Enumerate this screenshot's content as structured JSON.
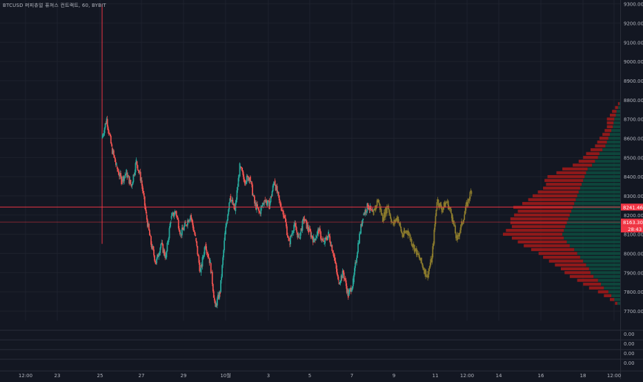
{
  "header": {
    "symbol_title": "BTCUSD 퍼피츄얼 퓨쳐스 컨트랙트, 60, BYBIT"
  },
  "colors": {
    "background": "#131722",
    "grid": "#1e222d",
    "axis_text": "#b2b5be",
    "candle_up": "#26a69a",
    "candle_down": "#ef5350",
    "candle_projection": "#8a7a2c",
    "price_line": "#f23645",
    "volume_profile_up": "#0d4d40",
    "volume_profile_down": "#9e1a1a",
    "spike_line": "#f23645"
  },
  "price_axis": {
    "ticks": [
      "9300.00",
      "9200.00",
      "9100.00",
      "9000.00",
      "8900.00",
      "8800.00",
      "8700.00",
      "8600.00",
      "8500.00",
      "8400.00",
      "8300.00",
      "8200.00",
      "8100.00",
      "8000.00",
      "7900.00",
      "7800.00",
      "7700.00"
    ],
    "ylim": [
      7650,
      9320
    ]
  },
  "price_labels": {
    "current_price": "8241.46",
    "second_price": "8163.30",
    "countdown": "28:43"
  },
  "sub_panes": {
    "labels": [
      "0.00",
      "0.00",
      "0.00",
      "0.00"
    ]
  },
  "time_axis": {
    "ticks": [
      "12:00",
      "23",
      "25",
      "27",
      "29",
      "10월",
      "3",
      "5",
      "7",
      "9",
      "11",
      "12:00",
      "14",
      "16",
      "18",
      "12:00"
    ]
  },
  "chart_data": {
    "type": "candlestick",
    "title": "BTCUSD 퍼피츄얼 퓨쳐스 컨트랙트, 60, BYBIT",
    "xlabel": "",
    "ylabel": "",
    "ylim": [
      7650,
      9320
    ],
    "x": [
      "12:00",
      "23",
      "25",
      "27",
      "29",
      "10월",
      "3",
      "5",
      "7",
      "9",
      "11",
      "12:00",
      "14",
      "16",
      "18",
      "12:00"
    ],
    "price_path": [
      [
        0,
        8600
      ],
      [
        1,
        8700
      ],
      [
        2,
        8550
      ],
      [
        3,
        8450
      ],
      [
        4,
        8380
      ],
      [
        5,
        8420
      ],
      [
        6,
        8350
      ],
      [
        7,
        8480
      ],
      [
        8,
        8380
      ],
      [
        9,
        8200
      ],
      [
        10,
        8050
      ],
      [
        11,
        7950
      ],
      [
        12,
        8050
      ],
      [
        13,
        7980
      ],
      [
        14,
        8180
      ],
      [
        15,
        8220
      ],
      [
        16,
        8100
      ],
      [
        17,
        8150
      ],
      [
        18,
        8200
      ],
      [
        19,
        8080
      ],
      [
        20,
        7900
      ],
      [
        21,
        8050
      ],
      [
        22,
        7950
      ],
      [
        23,
        7720
      ],
      [
        24,
        7800
      ],
      [
        25,
        8100
      ],
      [
        26,
        8300
      ],
      [
        27,
        8220
      ],
      [
        28,
        8450
      ],
      [
        29,
        8380
      ],
      [
        30,
        8400
      ],
      [
        31,
        8260
      ],
      [
        32,
        8210
      ],
      [
        33,
        8280
      ],
      [
        34,
        8250
      ],
      [
        35,
        8380
      ],
      [
        36,
        8270
      ],
      [
        37,
        8200
      ],
      [
        38,
        8050
      ],
      [
        39,
        8150
      ],
      [
        40,
        8080
      ],
      [
        41,
        8180
      ],
      [
        42,
        8120
      ],
      [
        43,
        8070
      ],
      [
        44,
        8120
      ],
      [
        45,
        8050
      ],
      [
        46,
        8100
      ],
      [
        47,
        8000
      ],
      [
        48,
        7850
      ],
      [
        49,
        7900
      ],
      [
        50,
        7780
      ],
      [
        51,
        7850
      ],
      [
        52,
        8050
      ],
      [
        53,
        8200
      ],
      [
        54,
        8250
      ],
      [
        55,
        8200
      ]
    ],
    "projection_path": [
      [
        55,
        8200
      ],
      [
        56,
        8280
      ],
      [
        57,
        8180
      ],
      [
        58,
        8250
      ],
      [
        59,
        8150
      ],
      [
        60,
        8190
      ],
      [
        61,
        8090
      ],
      [
        62,
        8120
      ],
      [
        63,
        8050
      ],
      [
        64,
        8000
      ],
      [
        65,
        7940
      ],
      [
        66,
        7880
      ],
      [
        67,
        7980
      ],
      [
        68,
        8280
      ],
      [
        69,
        8230
      ],
      [
        70,
        8270
      ],
      [
        71,
        8200
      ],
      [
        72,
        8070
      ],
      [
        73,
        8150
      ],
      [
        74,
        8250
      ],
      [
        75,
        8330
      ]
    ],
    "spike": {
      "index": 6,
      "high": 9300,
      "low": 8050
    },
    "current_price": 8241.46,
    "second_price": 8163.3,
    "volume_profile": {
      "prices": [
        8780,
        8760,
        8740,
        8720,
        8700,
        8680,
        8660,
        8640,
        8620,
        8600,
        8580,
        8560,
        8540,
        8520,
        8500,
        8480,
        8460,
        8440,
        8420,
        8400,
        8380,
        8360,
        8340,
        8320,
        8300,
        8280,
        8260,
        8240,
        8220,
        8200,
        8180,
        8160,
        8140,
        8120,
        8100,
        8080,
        8060,
        8040,
        8020,
        8000,
        7980,
        7960,
        7940,
        7920,
        7900,
        7880,
        7860,
        7840,
        7820,
        7800,
        7780,
        7760,
        7740
      ],
      "down_volume": [
        2,
        4,
        6,
        8,
        10,
        9,
        8,
        9,
        10,
        12,
        13,
        14,
        16,
        18,
        20,
        22,
        26,
        34,
        40,
        50,
        52,
        48,
        50,
        55,
        60,
        64,
        70,
        80,
        72,
        75,
        78,
        76,
        72,
        78,
        80,
        70,
        66,
        62,
        58,
        52,
        50,
        46,
        42,
        38,
        35,
        32,
        28,
        24,
        20,
        14,
        10,
        6,
        3
      ],
      "up_volume": [
        1,
        3,
        5,
        6,
        8,
        9,
        10,
        12,
        14,
        16,
        18,
        20,
        24,
        28,
        30,
        34,
        38,
        44,
        46,
        48,
        50,
        52,
        54,
        56,
        58,
        60,
        62,
        64,
        66,
        68,
        70,
        72,
        74,
        76,
        78,
        76,
        72,
        68,
        62,
        58,
        54,
        50,
        46,
        42,
        40,
        36,
        30,
        26,
        22,
        16,
        12,
        8,
        4
      ]
    }
  }
}
